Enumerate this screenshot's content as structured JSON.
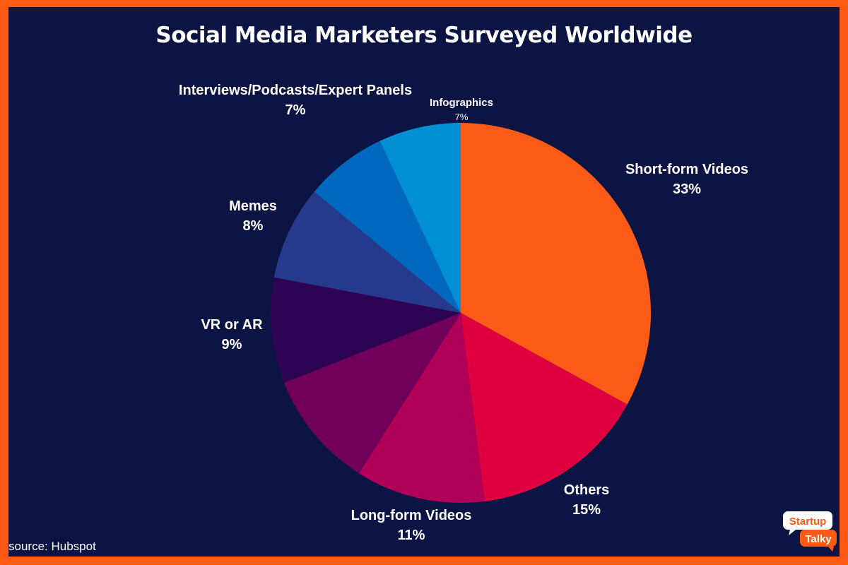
{
  "chart_data": {
    "type": "pie",
    "title": "Social Media Marketers Surveyed Worldwide",
    "slices": [
      {
        "label": "Short-form Videos",
        "value": 33,
        "value_label": "33%",
        "color": "#fb5a17"
      },
      {
        "label": "Others",
        "value": 15,
        "value_label": "15%",
        "color": "#e0003f"
      },
      {
        "label": "Long-form Videos",
        "value": 11,
        "value_label": "11%",
        "color": "#b10058"
      },
      {
        "label": "",
        "value": 10,
        "value_label": "",
        "color": "#70005a"
      },
      {
        "label": "VR or AR",
        "value": 9,
        "value_label": "9%",
        "color": "#2d0454"
      },
      {
        "label": "Memes",
        "value": 8,
        "value_label": "8%",
        "color": "#253a8d"
      },
      {
        "label": "Interviews/Podcasts/Expert Panels",
        "value": 7,
        "value_label": "7%",
        "color": "#0069bf"
      },
      {
        "label": "Infographics",
        "value": 7,
        "value_label": "7%",
        "color": "#0290d5"
      }
    ]
  },
  "source": "source: Hubspot",
  "logo": {
    "line1": "Startup",
    "line2": "Talky"
  },
  "colors": {
    "background": "#0b1443",
    "border": "#ff5a14",
    "text": "#ffffff"
  }
}
